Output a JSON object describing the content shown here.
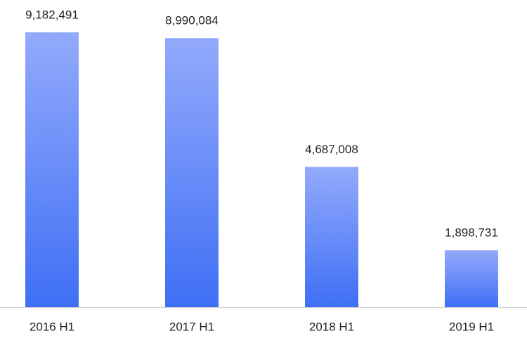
{
  "chart_data": {
    "type": "bar",
    "categories": [
      "2016 H1",
      "2017 H1",
      "2018 H1",
      "2019 H1"
    ],
    "values": [
      9182491,
      8990084,
      4687008,
      1898731
    ],
    "value_labels": [
      "9,182,491",
      "8,990,084",
      "4,687,008",
      "1,898,731"
    ],
    "color": "#3f6ff5"
  }
}
